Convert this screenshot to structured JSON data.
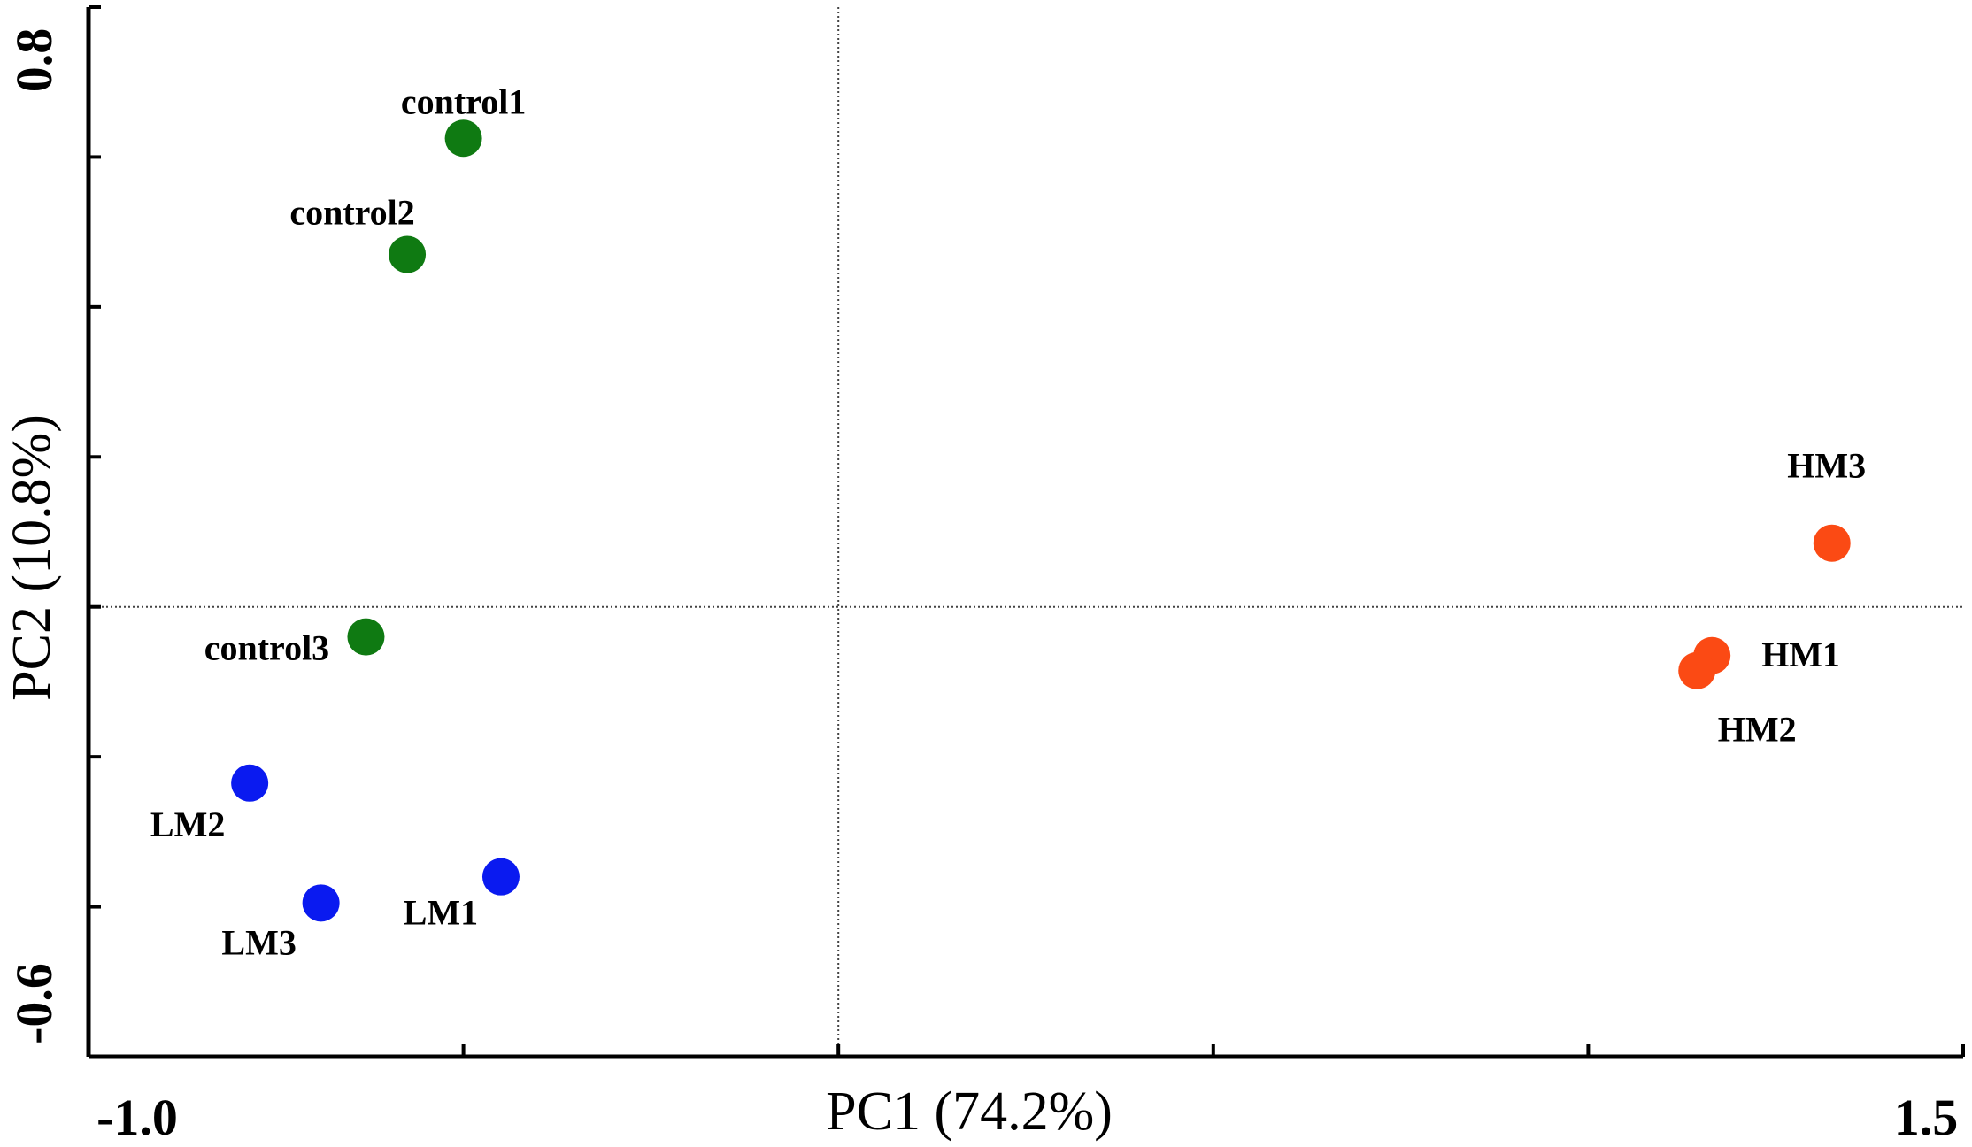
{
  "chart_data": {
    "type": "scatter",
    "title": "",
    "xlabel": "PC1 (74.2%)",
    "ylabel": "PC2 (10.8%)",
    "xlim": [
      -1.0,
      1.5
    ],
    "ylim": [
      -0.6,
      0.8
    ],
    "x_tick_labels": [
      "-1.0",
      "1.5"
    ],
    "y_tick_labels": [
      "0.8",
      "-0.6"
    ],
    "x_ticks": [
      -1.0,
      -0.5,
      0.0,
      0.5,
      1.0,
      1.5
    ],
    "y_ticks": [
      -0.6,
      -0.4,
      -0.2,
      0.0,
      0.2,
      0.4,
      0.6,
      0.8
    ],
    "reference_lines": {
      "x": 0.0,
      "y": 0.0
    },
    "grid": false,
    "legend": "none",
    "series": [
      {
        "group": "control",
        "color": "#0f7a12",
        "points": [
          {
            "label": "control1",
            "x": -0.5,
            "y": 0.625
          },
          {
            "label": "control2",
            "x": -0.575,
            "y": 0.47
          },
          {
            "label": "control3",
            "x": -0.63,
            "y": -0.04
          }
        ]
      },
      {
        "group": "LM",
        "color": "#0a1af0",
        "points": [
          {
            "label": "LM1",
            "x": -0.45,
            "y": -0.36
          },
          {
            "label": "LM2",
            "x": -0.785,
            "y": -0.235
          },
          {
            "label": "LM3",
            "x": -0.69,
            "y": -0.395
          }
        ]
      },
      {
        "group": "HM",
        "color": "#fb4a14",
        "points": [
          {
            "label": "HM1",
            "x": 1.165,
            "y": -0.065
          },
          {
            "label": "HM2",
            "x": 1.145,
            "y": -0.085
          },
          {
            "label": "HM3",
            "x": 1.325,
            "y": 0.085
          }
        ]
      }
    ]
  }
}
